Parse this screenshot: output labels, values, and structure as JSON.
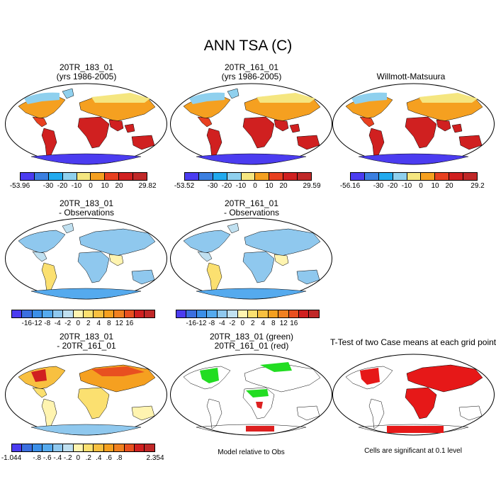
{
  "figure": {
    "title": "ANN TSA (C)"
  },
  "panels": {
    "p1": {
      "title1": "20TR_183_01",
      "title2": "(yrs 1986-2005)"
    },
    "p2": {
      "title1": "20TR_161_01",
      "title2": "(yrs 1986-2005)"
    },
    "p3": {
      "title1": "Willmott-Matsuura"
    },
    "p4": {
      "title1": "20TR_183_01",
      "title2": "- Observations"
    },
    "p5": {
      "title1": "20TR_161_01",
      "title2": "- Observations"
    },
    "p6": {
      "title1": "20TR_183_01",
      "title2": "- 20TR_161_01"
    },
    "p7": {
      "title1": "20TR_183_01 (green)",
      "title2": "20TR_161_01 (red)",
      "note": "Model relative to Obs"
    },
    "p8": {
      "title1": "T-Test of two Case means at each grid point",
      "note": "Cells are significant at 0.1 level"
    }
  },
  "colorbars": {
    "abs1": {
      "labels": [
        "-53.96",
        "-30",
        "-20",
        "-10",
        "0",
        "10",
        "20",
        "29.82"
      ]
    },
    "abs2": {
      "labels": [
        "-53.52",
        "-30",
        "-20",
        "-10",
        "0",
        "10",
        "20",
        "29.59"
      ]
    },
    "abs3": {
      "labels": [
        "-56.16",
        "-30",
        "-20",
        "-10",
        "0",
        "10",
        "20",
        "29.2"
      ]
    },
    "diff1": {
      "labels": [
        "-16",
        "-12",
        "-8",
        "-4",
        "-2",
        "0",
        "2",
        "4",
        "8",
        "12",
        "16"
      ]
    },
    "diff2": {
      "labels": [
        "-16",
        "-12",
        "-8",
        "-4",
        "-2",
        "0",
        "2",
        "4",
        "8",
        "12",
        "16"
      ]
    },
    "diff3": {
      "labels": [
        "-1.044",
        "-.8",
        "-.6",
        "-.4",
        "-.2",
        "0",
        ".2",
        ".4",
        ".6",
        ".8",
        "2.354"
      ]
    }
  },
  "palettes": {
    "abs": [
      "#4b3cf0",
      "#3b7fe0",
      "#22aaee",
      "#8fd0ee",
      "#f5e680",
      "#f5a020",
      "#e84020",
      "#d02020",
      "#c02828"
    ],
    "diff": [
      "#4b3cf0",
      "#3b6fe0",
      "#3b8fe8",
      "#55aaee",
      "#8fc8ee",
      "#c0e0f0",
      "#fff4b0",
      "#fbe070",
      "#f8c040",
      "#f5a020",
      "#f08020",
      "#e85020",
      "#d02020",
      "#c02828"
    ]
  }
}
